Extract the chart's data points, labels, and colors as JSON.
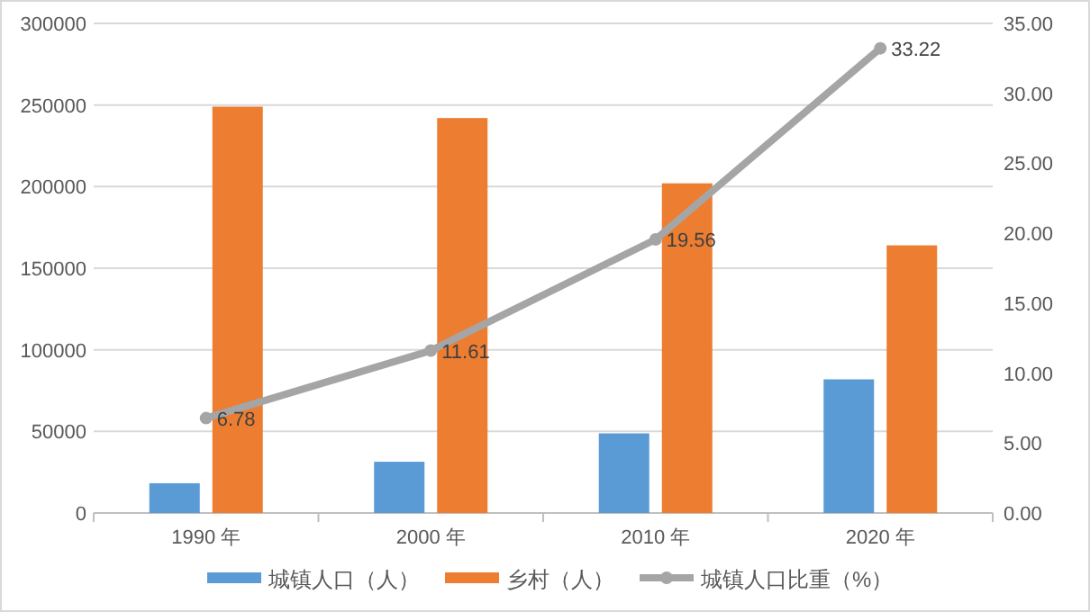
{
  "chart_data": {
    "type": "bar",
    "categories": [
      "1990 年",
      "2000 年",
      "2010 年",
      "2020 年"
    ],
    "series": [
      {
        "name": "城镇人口（人）",
        "color": "#5b9bd5",
        "values": [
          18250,
          31400,
          48800,
          81900
        ]
      },
      {
        "name": "乡村（人）",
        "color": "#ed7d31",
        "values": [
          249000,
          242000,
          202000,
          164000
        ]
      },
      {
        "name": "城镇人口比重（%）",
        "type": "line",
        "axis": "y2",
        "color": "#a5a5a5",
        "values": [
          6.78,
          11.61,
          19.56,
          33.22
        ],
        "value_labels": [
          "6.78",
          "11.61",
          "19.56",
          "33.22"
        ]
      }
    ],
    "ylim": [
      0,
      300000
    ],
    "yticks": [
      0,
      50000,
      100000,
      150000,
      200000,
      250000,
      300000
    ],
    "y2lim": [
      0,
      35
    ],
    "y2ticks": [
      {
        "value": 0,
        "label": "0.00"
      },
      {
        "value": 5,
        "label": "5.00"
      },
      {
        "value": 10,
        "label": "10.00"
      },
      {
        "value": 15,
        "label": "15.00"
      },
      {
        "value": 20,
        "label": "20.00"
      },
      {
        "value": 25,
        "label": "25.00"
      },
      {
        "value": 30,
        "label": "30.00"
      },
      {
        "value": 35,
        "label": "35.00"
      }
    ],
    "grid": "y",
    "legend": "bottom",
    "marker": "circle"
  }
}
